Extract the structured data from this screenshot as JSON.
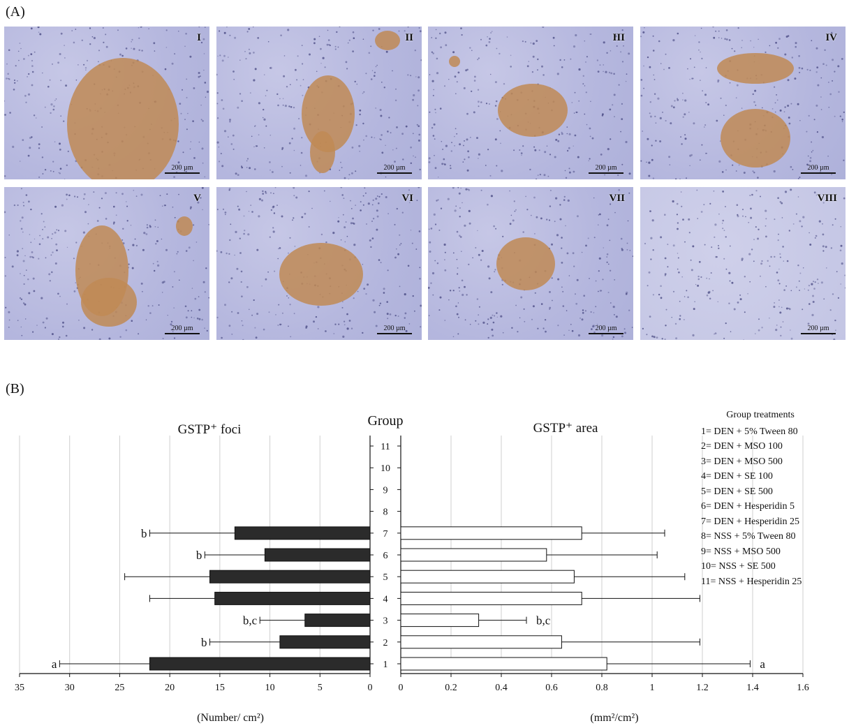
{
  "panel_a_label": "(A)",
  "panel_b_label": "(B)",
  "micrographs": [
    {
      "label": "I",
      "scale_text": "200 µm"
    },
    {
      "label": "II",
      "scale_text": "200 µm"
    },
    {
      "label": "III",
      "scale_text": "200 µm"
    },
    {
      "label": "IV",
      "scale_text": "200 µm"
    },
    {
      "label": "V",
      "scale_text": "200 µm"
    },
    {
      "label": "VI",
      "scale_text": "200 µm"
    },
    {
      "label": "VII",
      "scale_text": "200 µm"
    },
    {
      "label": "VIII",
      "scale_text": "200 µm"
    }
  ],
  "colors": {
    "left_bar": "#2b2b2b",
    "right_bar": "#ffffff",
    "stain_bg": "#b8badf",
    "stain_focus": "#c08a55"
  },
  "chart_data": [
    {
      "type": "bar",
      "orientation": "horizontal",
      "title": "GSTP⁺ foci",
      "xlabel": "(Number/ cm²)",
      "ylabel": "Group",
      "xlim": [
        0,
        35
      ],
      "x_reversed": true,
      "x_ticks": [
        35,
        30,
        25,
        20,
        15,
        10,
        5,
        0
      ],
      "categories": [
        "1",
        "2",
        "3",
        "4",
        "5",
        "6",
        "7",
        "8",
        "9",
        "10",
        "11"
      ],
      "values": [
        22,
        9,
        6.5,
        15.5,
        16,
        10.5,
        13.5,
        0,
        0,
        0,
        0
      ],
      "errors": [
        9,
        7,
        4.5,
        6.5,
        8.5,
        6,
        8.5,
        0,
        0,
        0,
        0
      ],
      "annotations": [
        "a",
        "b",
        "b,c",
        "",
        "",
        "b",
        "b",
        "",
        "",
        "",
        ""
      ],
      "grid": "vertical"
    },
    {
      "type": "bar",
      "orientation": "horizontal",
      "title": "GSTP⁺ area",
      "xlabel": "(mm²/cm²)",
      "xlim": [
        0,
        1.6
      ],
      "x_ticks": [
        0,
        0.2,
        0.4,
        0.6,
        0.8,
        1,
        1.2,
        1.4,
        1.6
      ],
      "categories": [
        "1",
        "2",
        "3",
        "4",
        "5",
        "6",
        "7",
        "8",
        "9",
        "10",
        "11"
      ],
      "values": [
        0.82,
        0.64,
        0.31,
        0.72,
        0.69,
        0.58,
        0.72,
        0,
        0,
        0,
        0
      ],
      "errors": [
        0.57,
        0.55,
        0.19,
        0.47,
        0.44,
        0.44,
        0.33,
        0,
        0,
        0,
        0
      ],
      "annotations": [
        "a",
        "",
        "b,c",
        "",
        "",
        "",
        "",
        "",
        "",
        "",
        ""
      ],
      "grid": "vertical"
    }
  ],
  "legend": {
    "title": "Group treatments",
    "items": [
      "1= DEN + 5% Tween 80",
      "2= DEN + MSO 100",
      "3= DEN + MSO 500",
      "4= DEN + SE 100",
      "5= DEN + SE 500",
      "6= DEN + Hesperidin 5",
      "7= DEN + Hesperidin 25",
      "8= NSS + 5% Tween 80",
      "9= NSS + MSO 500",
      "10= NSS + SE 500",
      "11= NSS + Hesperidin 25"
    ]
  }
}
